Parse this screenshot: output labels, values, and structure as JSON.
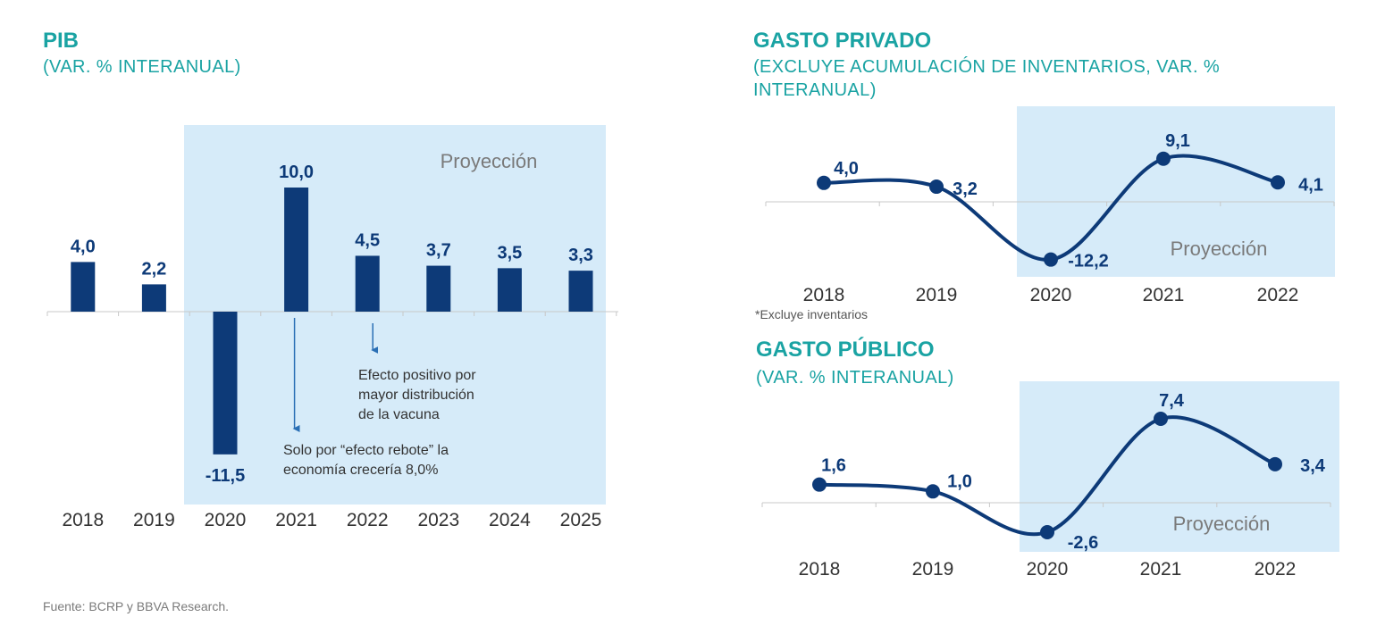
{
  "colors": {
    "title": "#1aa3a3",
    "bar": "#0d3a78",
    "shade": "#d6ebf9",
    "axis": "#c8c8c8"
  },
  "source": "Fuente: BCRP y BBVA Research.",
  "footnote": "*Excluye inventarios",
  "chart_data": [
    {
      "type": "bar",
      "title": "PIB",
      "subtitle": "(VAR. % INTERANUAL)",
      "categories": [
        "2018",
        "2019",
        "2020",
        "2021",
        "2022",
        "2023",
        "2024",
        "2025"
      ],
      "values": [
        4.0,
        2.2,
        -11.5,
        10.0,
        4.5,
        3.7,
        3.5,
        3.3
      ],
      "labels": [
        "4,0",
        "2,2",
        "-11,5",
        "10,0",
        "4,5",
        "3,7",
        "3,5",
        "3,3"
      ],
      "ylim": [
        -16,
        14
      ],
      "projection_label": "Proyección",
      "projection_from": "2020",
      "annotations": [
        {
          "category": "2021",
          "lines": [
            "Solo por “efecto rebote” la",
            "economía crecería 8,0%"
          ]
        },
        {
          "category": "2022",
          "lines": [
            "Efecto positivo por",
            "mayor distribución",
            "de la vacuna"
          ]
        }
      ]
    },
    {
      "type": "line",
      "title": "GASTO PRIVADO",
      "subtitle_lines": [
        "(EXCLUYE ACUMULACIÓN DE INVENTARIOS, VAR. %",
        "INTERANUAL)"
      ],
      "categories": [
        "2018",
        "2019",
        "2020",
        "2021",
        "2022"
      ],
      "values": [
        4.0,
        3.2,
        -12.2,
        9.1,
        4.1
      ],
      "labels": [
        "4,0",
        "3,2",
        "-12,2",
        "9,1",
        "4,1"
      ],
      "ylim": [
        -16,
        12
      ],
      "projection_label": "Proyección",
      "projection_from": "2020"
    },
    {
      "type": "line",
      "title": "GASTO PÚBLICO",
      "subtitle": "(VAR. % INTERANUAL)",
      "categories": [
        "2018",
        "2019",
        "2020",
        "2021",
        "2022"
      ],
      "values": [
        1.6,
        1.0,
        -2.6,
        7.4,
        3.4
      ],
      "labels": [
        "1,6",
        "1,0",
        "-2,6",
        "7,4",
        "3,4"
      ],
      "ylim": [
        -4,
        10
      ],
      "projection_label": "Proyección",
      "projection_from": "2020"
    }
  ]
}
